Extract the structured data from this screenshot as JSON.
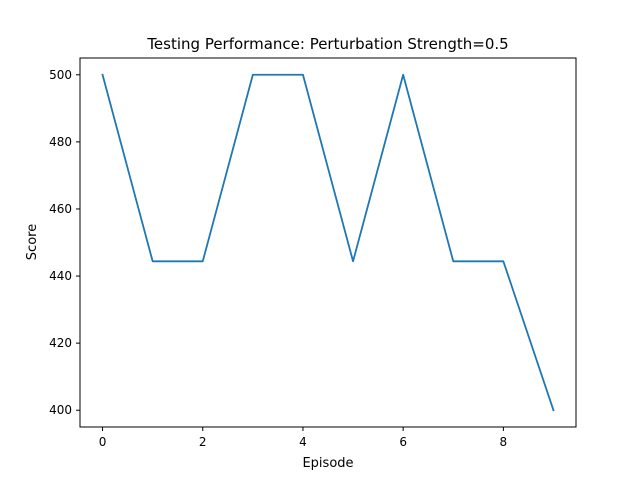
{
  "chart_data": {
    "type": "line",
    "title": "Testing Performance: Perturbation Strength=0.5",
    "xlabel": "Episode",
    "ylabel": "Score",
    "x": [
      0,
      1,
      2,
      3,
      4,
      5,
      6,
      7,
      8,
      9
    ],
    "series": [
      {
        "values": [
          500,
          444.4,
          444.4,
          500,
          500,
          444.4,
          500,
          444.4,
          444.4,
          400
        ],
        "color": "#1f77b4"
      }
    ],
    "xlim": [
      -0.45,
      9.45
    ],
    "ylim": [
      395,
      505
    ],
    "xticks": [
      0,
      2,
      4,
      6,
      8
    ],
    "yticks": [
      400,
      420,
      440,
      460,
      480,
      500
    ],
    "grid": false,
    "legend": "none"
  }
}
